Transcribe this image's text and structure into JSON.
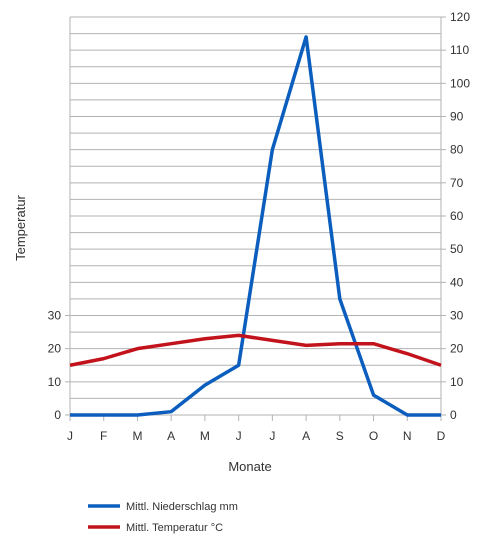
{
  "chart_data": {
    "type": "line",
    "categories": [
      "J",
      "F",
      "M",
      "A",
      "M",
      "J",
      "J",
      "A",
      "S",
      "O",
      "N",
      "D"
    ],
    "xlabel": "Monate",
    "ylabel": "Temperatur",
    "left_axis": {
      "ticks": [
        0,
        10,
        20,
        30
      ],
      "range": [
        0,
        30
      ]
    },
    "right_axis": {
      "ticks": [
        0,
        10,
        20,
        30,
        40,
        50,
        60,
        70,
        80,
        90,
        100,
        110,
        120
      ],
      "range": [
        0,
        120
      ]
    },
    "grid": true,
    "legend_position": "bottom-left",
    "series": [
      {
        "name": "Mittl. Niederschlag mm",
        "axis": "right",
        "color": "#0b5ebd",
        "values": [
          0,
          0,
          0,
          1,
          9,
          15,
          80,
          114,
          35,
          6,
          0,
          0
        ]
      },
      {
        "name": "Mittl. Temperatur °C",
        "axis": "right",
        "color": "#c2131c",
        "values": [
          15,
          17,
          20,
          21.5,
          23,
          24,
          22.5,
          21,
          21.5,
          21.5,
          18.5,
          15
        ]
      }
    ]
  }
}
